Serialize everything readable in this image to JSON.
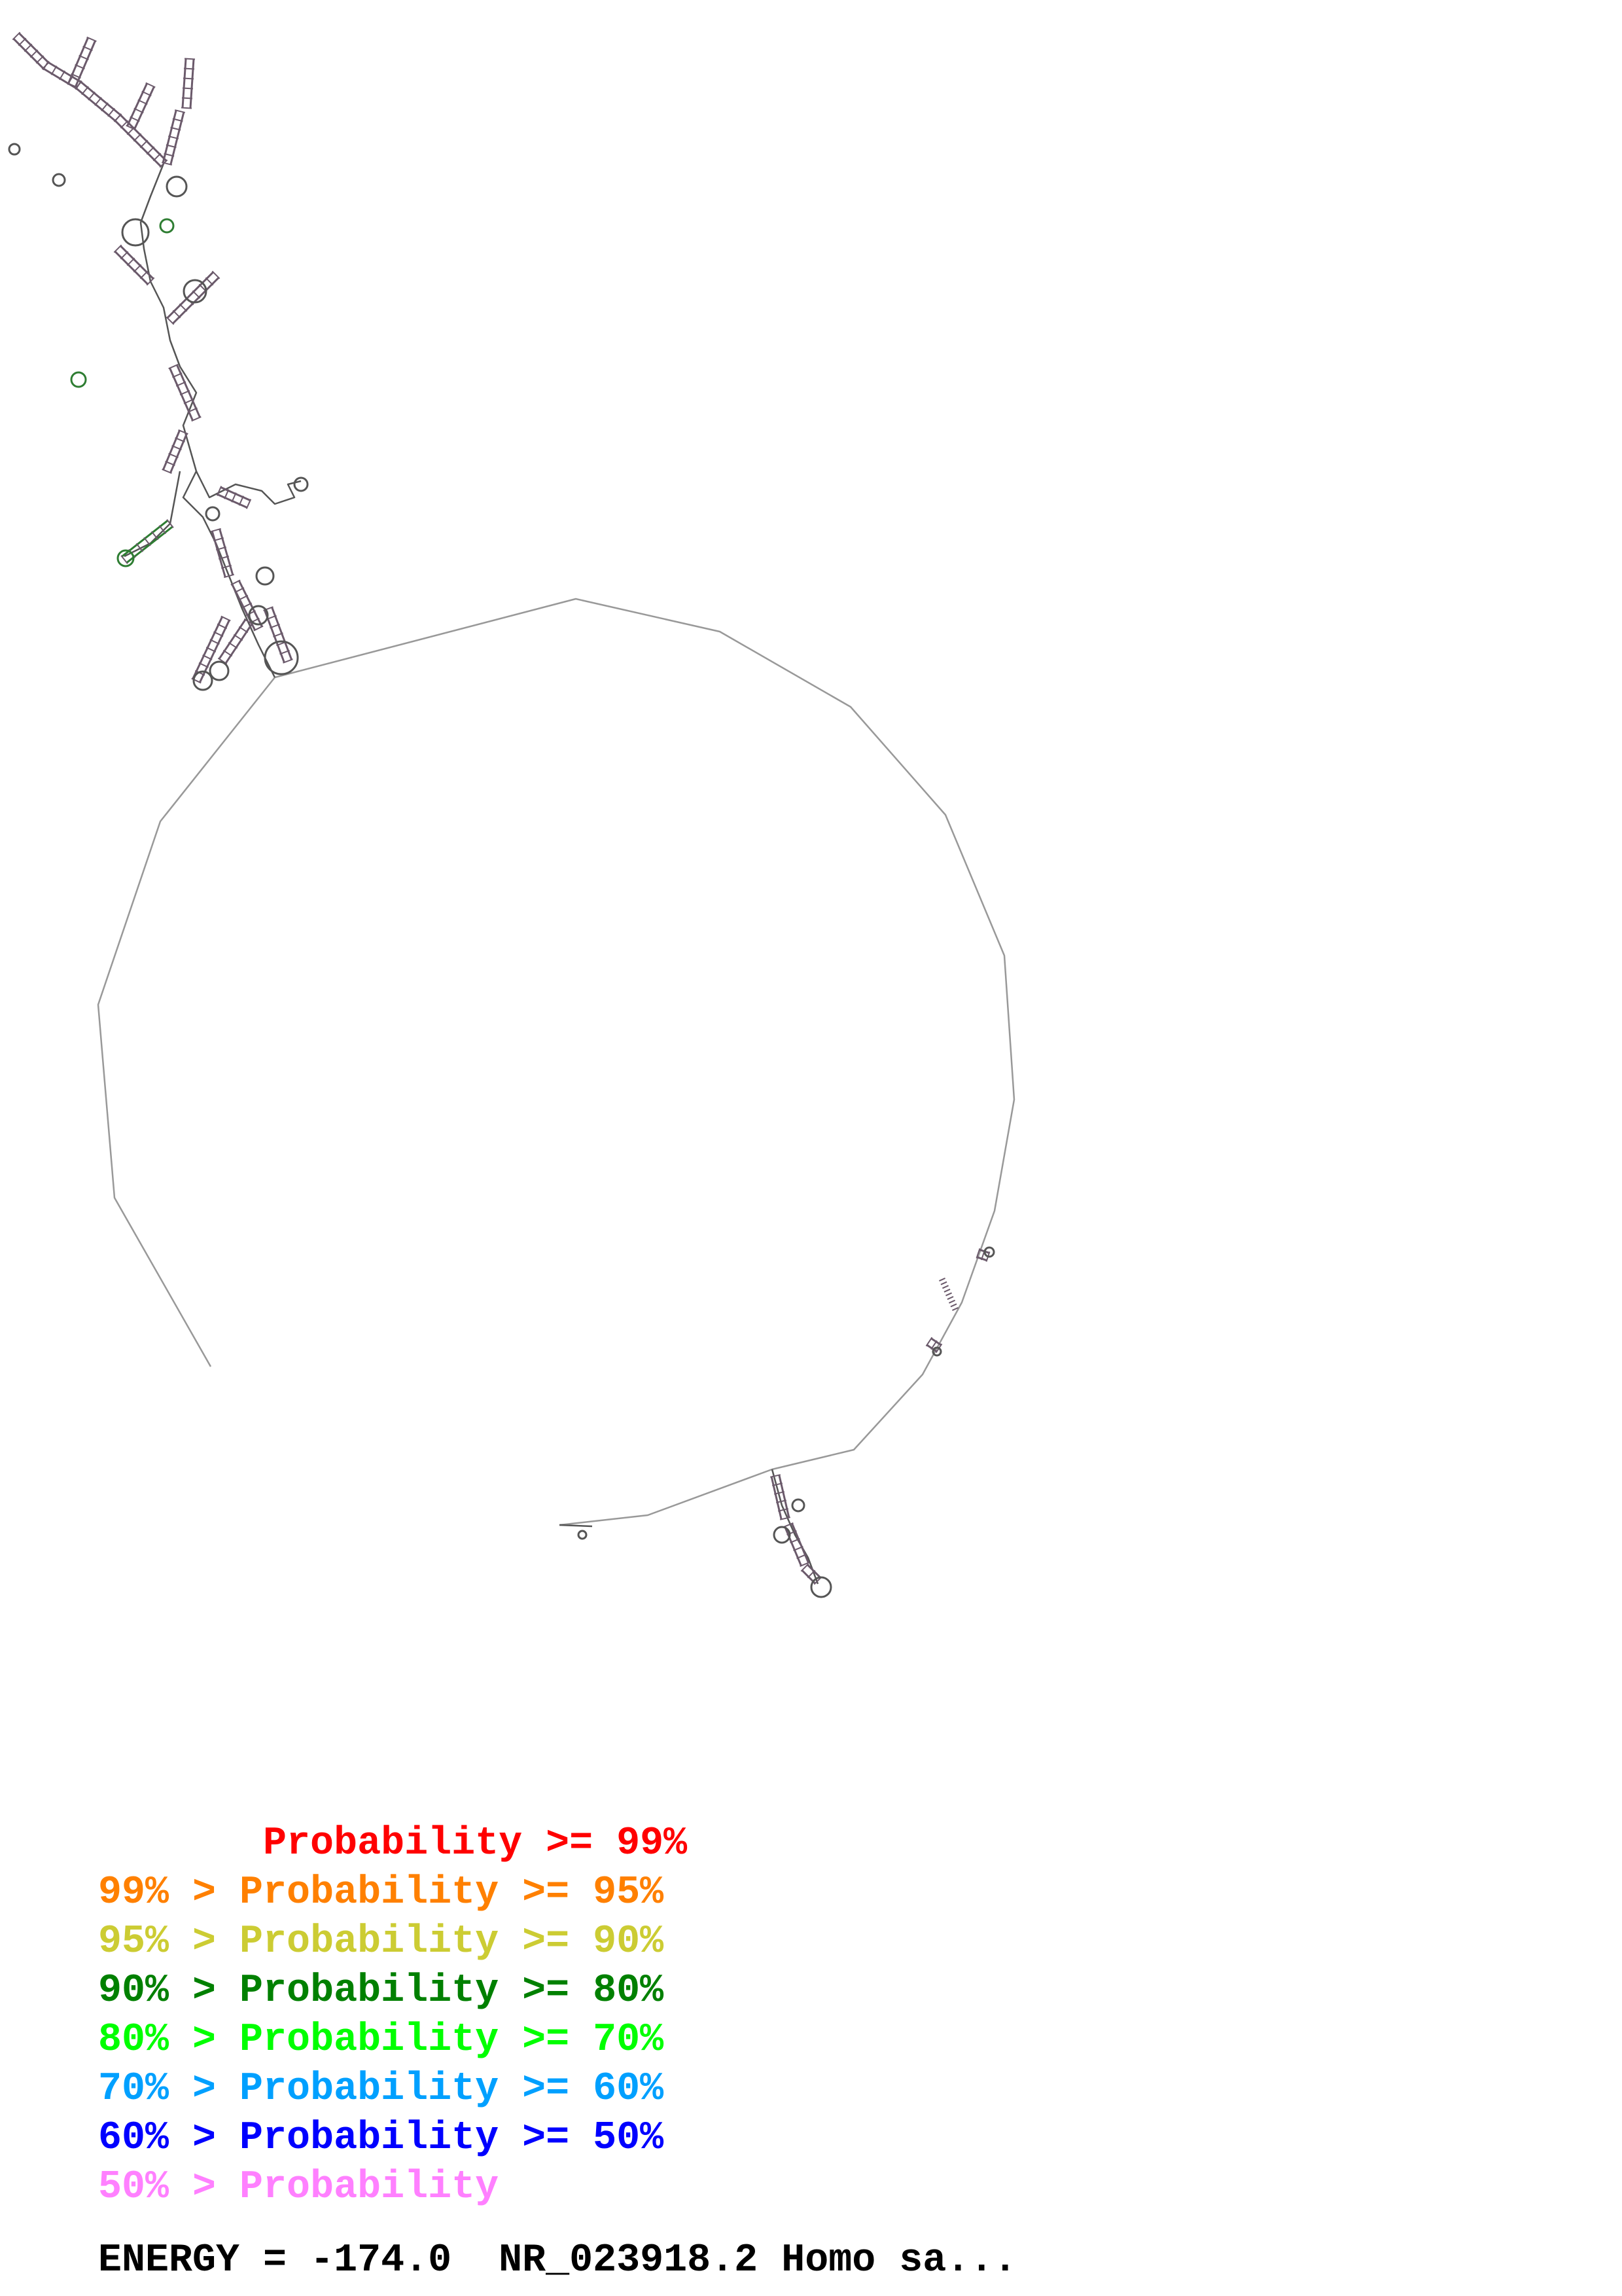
{
  "legend": [
    {
      "prefix": "       ",
      "label": "Probability >= 99%",
      "color": "#ff0000"
    },
    {
      "prefix": "99% > ",
      "label": "Probability >= 95%",
      "color": "#ff8000"
    },
    {
      "prefix": "95% > ",
      "label": "Probability >= 90%",
      "color": "#cccc33"
    },
    {
      "prefix": "90% > ",
      "label": "Probability >= 80%",
      "color": "#008000"
    },
    {
      "prefix": "80% > ",
      "label": "Probability >= 70%",
      "color": "#00ff00"
    },
    {
      "prefix": "70% > ",
      "label": "Probability >= 60%",
      "color": "#00a0ff"
    },
    {
      "prefix": "60% > ",
      "label": "Probability >= 50%",
      "color": "#0000ff"
    },
    {
      "prefix": "50% > ",
      "label": "Probability",
      "color": "#ff80ff"
    }
  ],
  "energy": {
    "label": "ENERGY = ",
    "value": "-174.0",
    "sequence_name": "NR_023918.2 Homo sa..."
  },
  "colors": {
    "backbone": "#999999",
    "helix": "#6b5a6b",
    "loop": "#555555",
    "green_helix": "#2e7d32"
  }
}
